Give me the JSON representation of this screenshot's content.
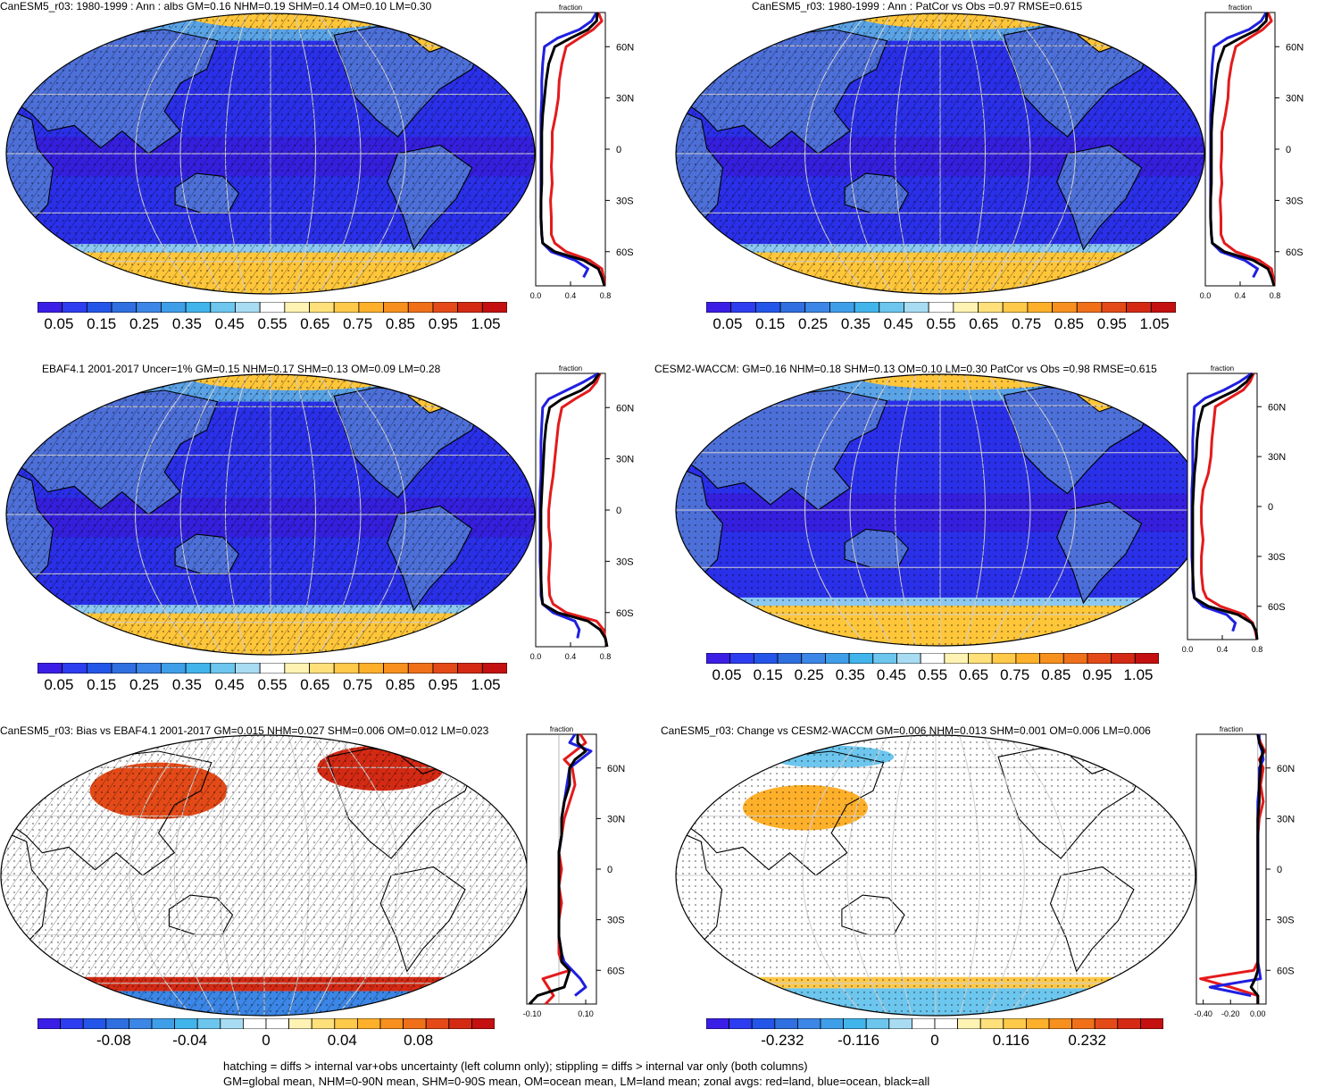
{
  "footer": {
    "line1": "hatching = diffs > internal var+obs uncertainty (left column only); stippling = diffs > internal var only (both columns)",
    "line2": "GM=global mean, NHM=0-90N mean, SHM=0-90S mean, OM=ocean mean, LM=land mean; zonal avgs: red=land, blue=ocean, black=all"
  },
  "colors": {
    "zonal_land": "#e41a1c",
    "zonal_ocean": "#1f1fe0",
    "zonal_all": "#000000",
    "grid": "#cfcfcf"
  },
  "scale_abs": {
    "colors": [
      "#3a1ee6",
      "#2d3df0",
      "#2355e8",
      "#2f6fdf",
      "#3b86e6",
      "#3f9ee8",
      "#41b4ec",
      "#6cc6ee",
      "#a8dcf2",
      "#ffffff",
      "#fff3b3",
      "#ffe07a",
      "#ffc94a",
      "#ffb02a",
      "#f7901e",
      "#f0701a",
      "#e44a18",
      "#d42a14",
      "#c41010"
    ],
    "labels": [
      "0.05",
      "0.15",
      "0.25",
      "0.35",
      "0.45",
      "0.55",
      "0.65",
      "0.75",
      "0.85",
      "0.95",
      "1.05"
    ]
  },
  "scale_bias": {
    "colors": [
      "#3a1ee6",
      "#2d3df0",
      "#2355e8",
      "#2f6fdf",
      "#3b86e6",
      "#3f9ee8",
      "#41b4ec",
      "#6cc6ee",
      "#a8dcf2",
      "#ffffff",
      "#ffffff",
      "#fff3b3",
      "#ffe07a",
      "#ffc94a",
      "#ffb02a",
      "#f7901e",
      "#f0701a",
      "#e44a18",
      "#d42a14",
      "#c41010"
    ],
    "labels": [
      "-0.08",
      "-0.04",
      "0",
      "0.04",
      "0.08"
    ]
  },
  "scale_change": {
    "colors": [
      "#3a1ee6",
      "#2d3df0",
      "#2355e8",
      "#2f6fdf",
      "#3b86e6",
      "#3f9ee8",
      "#41b4ec",
      "#6cc6ee",
      "#a8dcf2",
      "#ffffff",
      "#ffffff",
      "#fff3b3",
      "#ffe07a",
      "#ffc94a",
      "#ffb02a",
      "#f7901e",
      "#f0701a",
      "#e44a18",
      "#d42a14",
      "#c41010"
    ],
    "labels": [
      "-0.232",
      "-0.116",
      "0",
      "0.116",
      "0.232"
    ]
  },
  "chart_data": [
    {
      "type": "heatmap",
      "title": "CanESM5_r03: 1980-1999 : Ann : albs GM=0.16 NHM=0.19 SHM=0.14 OM=0.10 LM=0.30",
      "projection": "robinson-pacific-centered",
      "colorbar_ticks": [
        0.05,
        0.15,
        0.25,
        0.35,
        0.45,
        0.55,
        0.65,
        0.75,
        0.85,
        0.95,
        1.05
      ],
      "stats": {
        "GM": 0.16,
        "NHM": 0.19,
        "SHM": 0.14,
        "OM": 0.1,
        "LM": 0.3
      },
      "zonal": {
        "type": "line",
        "xlabel": "fraction",
        "xlim": [
          0,
          0.8
        ],
        "xticks": [
          "0.0",
          "0.4",
          "0.8"
        ],
        "yticks": [
          "60N",
          "30N",
          "0",
          "30S",
          "60S"
        ],
        "lat": [
          80,
          75,
          70,
          65,
          60,
          50,
          40,
          30,
          20,
          10,
          0,
          -10,
          -20,
          -30,
          -40,
          -50,
          -55,
          -60,
          -65,
          -70,
          -75,
          -80
        ],
        "series": [
          {
            "name": "land",
            "values": [
              0.72,
              0.76,
              0.66,
              0.5,
              0.35,
              0.3,
              0.27,
              0.26,
              0.23,
              0.19,
              0.19,
              0.18,
              0.19,
              0.17,
              0.18,
              0.18,
              0.22,
              0.35,
              0.62,
              0.76,
              0.78,
              0.79
            ]
          },
          {
            "name": "ocean",
            "values": [
              0.7,
              0.64,
              0.5,
              0.25,
              0.1,
              0.08,
              0.07,
              0.07,
              0.06,
              0.06,
              0.06,
              0.06,
              0.06,
              0.06,
              0.06,
              0.07,
              0.08,
              0.18,
              0.45,
              0.6,
              0.55,
              null
            ]
          },
          {
            "name": "all",
            "values": [
              0.71,
              0.7,
              0.6,
              0.4,
              0.22,
              0.15,
              0.12,
              0.1,
              0.08,
              0.07,
              0.07,
              0.07,
              0.07,
              0.06,
              0.06,
              0.07,
              0.08,
              0.22,
              0.55,
              0.72,
              0.76,
              0.79
            ]
          }
        ]
      }
    },
    {
      "type": "heatmap",
      "title": "CanESM5_r03: 1980-1999 : Ann : PatCor vs Obs =0.97 RMSE=0.615",
      "projection": "robinson-pacific-centered",
      "colorbar_ticks": [
        0.05,
        0.15,
        0.25,
        0.35,
        0.45,
        0.55,
        0.65,
        0.75,
        0.85,
        0.95,
        1.05
      ],
      "zonal": {
        "type": "line",
        "xlabel": "fraction",
        "xlim": [
          0,
          0.8
        ],
        "xticks": [
          "0.0",
          "0.4",
          "0.8"
        ],
        "yticks": [
          "60N",
          "30N",
          "0",
          "30S",
          "60S"
        ],
        "lat": [
          80,
          75,
          70,
          65,
          60,
          50,
          40,
          30,
          20,
          10,
          0,
          -10,
          -20,
          -30,
          -40,
          -50,
          -55,
          -60,
          -65,
          -70,
          -75,
          -80
        ],
        "series": [
          {
            "name": "land",
            "values": [
              0.72,
              0.76,
              0.66,
              0.5,
              0.35,
              0.3,
              0.27,
              0.26,
              0.23,
              0.19,
              0.19,
              0.18,
              0.19,
              0.17,
              0.18,
              0.18,
              0.22,
              0.35,
              0.62,
              0.76,
              0.78,
              0.79
            ]
          },
          {
            "name": "ocean",
            "values": [
              0.7,
              0.64,
              0.5,
              0.25,
              0.1,
              0.08,
              0.07,
              0.07,
              0.06,
              0.06,
              0.06,
              0.06,
              0.06,
              0.06,
              0.06,
              0.07,
              0.08,
              0.18,
              0.45,
              0.6,
              0.55,
              null
            ]
          },
          {
            "name": "all",
            "values": [
              0.71,
              0.7,
              0.6,
              0.4,
              0.22,
              0.15,
              0.12,
              0.1,
              0.08,
              0.07,
              0.07,
              0.07,
              0.07,
              0.06,
              0.06,
              0.07,
              0.08,
              0.22,
              0.55,
              0.72,
              0.76,
              0.79
            ]
          }
        ]
      }
    },
    {
      "type": "heatmap",
      "title": "EBAF4.1 2001-2017 Uncer=1% GM=0.15 NHM=0.17 SHM=0.13 OM=0.09 LM=0.28",
      "projection": "robinson-pacific-centered",
      "colorbar_ticks": [
        0.05,
        0.15,
        0.25,
        0.35,
        0.45,
        0.55,
        0.65,
        0.75,
        0.85,
        0.95,
        1.05
      ],
      "stats": {
        "GM": 0.15,
        "NHM": 0.17,
        "SHM": 0.13,
        "OM": 0.09,
        "LM": 0.28
      },
      "zonal": {
        "type": "line",
        "xlabel": "fraction",
        "xlim": [
          0,
          0.8
        ],
        "xticks": [
          "0.0",
          "0.4",
          "0.8"
        ],
        "yticks": [
          "60N",
          "30N",
          "0",
          "30S",
          "60S"
        ],
        "lat": [
          80,
          75,
          70,
          65,
          60,
          50,
          40,
          30,
          20,
          10,
          0,
          -10,
          -20,
          -30,
          -40,
          -50,
          -55,
          -60,
          -65,
          -70,
          -75,
          -80
        ],
        "series": [
          {
            "name": "land",
            "values": [
              0.74,
              0.7,
              0.62,
              0.45,
              0.3,
              0.26,
              0.24,
              0.22,
              0.2,
              0.17,
              0.15,
              0.15,
              0.17,
              0.16,
              0.15,
              0.16,
              0.2,
              0.35,
              0.7,
              0.78,
              0.8,
              0.82
            ]
          },
          {
            "name": "ocean",
            "values": [
              0.72,
              0.55,
              0.35,
              0.15,
              0.08,
              0.07,
              0.06,
              0.06,
              0.06,
              0.05,
              0.05,
              0.05,
              0.05,
              0.05,
              0.06,
              0.06,
              0.08,
              0.2,
              0.45,
              0.5,
              0.48,
              null
            ]
          },
          {
            "name": "all",
            "values": [
              0.73,
              0.66,
              0.52,
              0.3,
              0.16,
              0.12,
              0.1,
              0.09,
              0.08,
              0.07,
              0.06,
              0.06,
              0.06,
              0.06,
              0.06,
              0.07,
              0.08,
              0.25,
              0.6,
              0.74,
              0.8,
              0.82
            ]
          }
        ]
      }
    },
    {
      "type": "heatmap",
      "title": "CESM2-WACCM: GM=0.16 NHM=0.18 SHM=0.13 OM=0.10 LM=0.30 PatCor vs Obs =0.98 RMSE=0.615",
      "projection": "robinson-pacific-centered",
      "colorbar_ticks": [
        0.05,
        0.15,
        0.25,
        0.35,
        0.45,
        0.55,
        0.65,
        0.75,
        0.85,
        0.95,
        1.05
      ],
      "stats": {
        "GM": 0.16,
        "NHM": 0.18,
        "SHM": 0.13,
        "OM": 0.1,
        "LM": 0.3
      },
      "zonal": {
        "type": "line",
        "xlabel": "fraction",
        "xlim": [
          0,
          0.8
        ],
        "xticks": [
          "0.0",
          "0.4",
          "0.8"
        ],
        "yticks": [
          "60N",
          "30N",
          "0",
          "30S",
          "60S"
        ],
        "lat": [
          80,
          75,
          70,
          65,
          60,
          50,
          40,
          30,
          20,
          10,
          0,
          -10,
          -20,
          -30,
          -40,
          -50,
          -55,
          -60,
          -65,
          -70,
          -75,
          -80
        ],
        "series": [
          {
            "name": "land",
            "values": [
              0.76,
              0.72,
              0.64,
              0.48,
              0.32,
              0.3,
              0.28,
              0.27,
              0.24,
              0.18,
              0.16,
              0.16,
              0.18,
              0.16,
              0.16,
              0.18,
              0.22,
              0.38,
              0.65,
              0.75,
              0.78,
              0.8
            ]
          },
          {
            "name": "ocean",
            "values": [
              0.74,
              0.6,
              0.42,
              0.2,
              0.08,
              0.07,
              0.06,
              0.06,
              0.06,
              0.05,
              0.05,
              0.05,
              0.05,
              0.05,
              0.06,
              0.06,
              0.08,
              0.18,
              0.45,
              0.55,
              0.52,
              null
            ]
          },
          {
            "name": "all",
            "values": [
              0.75,
              0.68,
              0.56,
              0.36,
              0.18,
              0.13,
              0.11,
              0.1,
              0.08,
              0.07,
              0.06,
              0.06,
              0.06,
              0.06,
              0.06,
              0.07,
              0.08,
              0.24,
              0.58,
              0.74,
              0.79,
              0.8
            ]
          }
        ]
      }
    },
    {
      "type": "heatmap",
      "title": "CanESM5_r03: Bias vs EBAF4.1 2001-2017 GM=0.015 NHM=0.027 SHM=0.006 OM=0.012 LM=0.023",
      "projection": "robinson-pacific-centered",
      "colorbar_ticks": [
        -0.08,
        -0.04,
        0,
        0.04,
        0.08
      ],
      "stats": {
        "GM": 0.015,
        "NHM": 0.027,
        "SHM": 0.006,
        "OM": 0.012,
        "LM": 0.023
      },
      "zonal": {
        "type": "line",
        "xlabel": "fraction",
        "xlim": [
          -0.12,
          0.14
        ],
        "xticks": [
          "-0.10",
          "0.10"
        ],
        "yticks": [
          "60N",
          "30N",
          "0",
          "30S",
          "60S"
        ],
        "lat": [
          80,
          75,
          70,
          65,
          60,
          50,
          40,
          30,
          20,
          10,
          0,
          -10,
          -20,
          -30,
          -40,
          -50,
          -55,
          -60,
          -65,
          -70,
          -75,
          -80
        ],
        "series": [
          {
            "name": "land",
            "values": [
              0.08,
              0.1,
              0.06,
              0.02,
              0.05,
              0.06,
              0.04,
              0.02,
              0.01,
              0.0,
              0.01,
              0.0,
              0.01,
              0.0,
              0.0,
              0.0,
              0.01,
              0.04,
              -0.06,
              -0.04,
              -0.02,
              -0.05
            ]
          },
          {
            "name": "ocean",
            "values": [
              0.06,
              0.04,
              0.12,
              0.08,
              0.04,
              0.03,
              0.02,
              0.01,
              0.01,
              0.0,
              0.0,
              0.0,
              0.0,
              0.0,
              0.0,
              0.01,
              0.02,
              0.05,
              0.08,
              0.1,
              0.06,
              null
            ]
          },
          {
            "name": "all",
            "values": [
              0.07,
              0.07,
              0.1,
              0.06,
              0.04,
              0.04,
              0.02,
              0.01,
              0.01,
              0.0,
              0.0,
              0.0,
              0.0,
              0.0,
              0.0,
              0.01,
              0.01,
              0.04,
              0.03,
              0.02,
              -0.08,
              -0.11
            ]
          }
        ]
      }
    },
    {
      "type": "heatmap",
      "title": "CanESM5_r03: Change vs CESM2-WACCM GM=0.006 NHM=0.013 SHM=0.001 OM=0.006 LM=0.006",
      "projection": "robinson-pacific-centered",
      "colorbar_ticks": [
        -0.232,
        -0.116,
        0,
        0.116,
        0.232
      ],
      "stats": {
        "GM": 0.006,
        "NHM": 0.013,
        "SHM": 0.001,
        "OM": 0.006,
        "LM": 0.006
      },
      "zonal": {
        "type": "line",
        "xlabel": "fraction",
        "xlim": [
          -0.45,
          0.06
        ],
        "xticks": [
          "-0.40",
          "-0.20",
          "0.00"
        ],
        "yticks": [
          "60N",
          "30N",
          "0",
          "30S",
          "60S"
        ],
        "lat": [
          80,
          75,
          70,
          65,
          60,
          50,
          40,
          30,
          20,
          10,
          0,
          -10,
          -20,
          -30,
          -40,
          -50,
          -55,
          -60,
          -65,
          -70,
          -75,
          -80
        ],
        "series": [
          {
            "name": "land",
            "values": [
              0.0,
              0.02,
              0.05,
              0.01,
              0.04,
              0.02,
              0.04,
              0.01,
              0.0,
              0.0,
              0.0,
              0.0,
              0.0,
              0.0,
              0.0,
              0.0,
              0.0,
              -0.03,
              -0.42,
              -0.2,
              0.0,
              0.0
            ]
          },
          {
            "name": "ocean",
            "values": [
              0.01,
              0.01,
              0.03,
              0.04,
              0.01,
              0.01,
              0.0,
              0.0,
              0.0,
              0.0,
              0.0,
              0.0,
              0.0,
              0.0,
              0.0,
              0.0,
              0.0,
              0.01,
              0.02,
              -0.35,
              -0.05,
              null
            ]
          },
          {
            "name": "all",
            "values": [
              0.0,
              0.01,
              0.04,
              0.02,
              0.02,
              0.01,
              0.01,
              0.0,
              0.0,
              0.0,
              0.0,
              0.0,
              0.0,
              0.0,
              0.0,
              0.0,
              0.0,
              0.0,
              -0.02,
              -0.05,
              0.0,
              0.0
            ]
          }
        ]
      }
    }
  ]
}
